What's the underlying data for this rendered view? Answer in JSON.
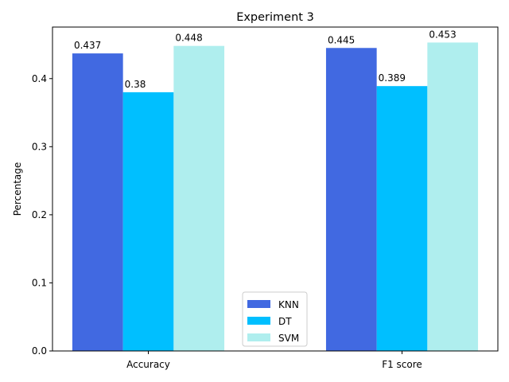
{
  "chart_data": {
    "type": "bar",
    "title": "Experiment 3",
    "xlabel": "",
    "ylabel": "Percentage",
    "categories": [
      "Accuracy",
      "F1 score"
    ],
    "series": [
      {
        "name": "KNN",
        "values": [
          0.437,
          0.445
        ],
        "labels": [
          "0.437",
          "0.445"
        ],
        "color": "#4169e1"
      },
      {
        "name": "DT",
        "values": [
          0.38,
          0.389
        ],
        "labels": [
          "0.38",
          "0.389"
        ],
        "color": "#00bfff"
      },
      {
        "name": "SVM",
        "values": [
          0.448,
          0.453
        ],
        "labels": [
          "0.448",
          "0.453"
        ],
        "color": "#afeeee"
      }
    ],
    "ylim": [
      0,
      0.4757
    ],
    "yticks": [
      0.0,
      0.1,
      0.2,
      0.3,
      0.4
    ],
    "ytick_labels": [
      "0.0",
      "0.1",
      "0.2",
      "0.3",
      "0.4"
    ],
    "grid": false,
    "legend_position": "bottom-center"
  }
}
